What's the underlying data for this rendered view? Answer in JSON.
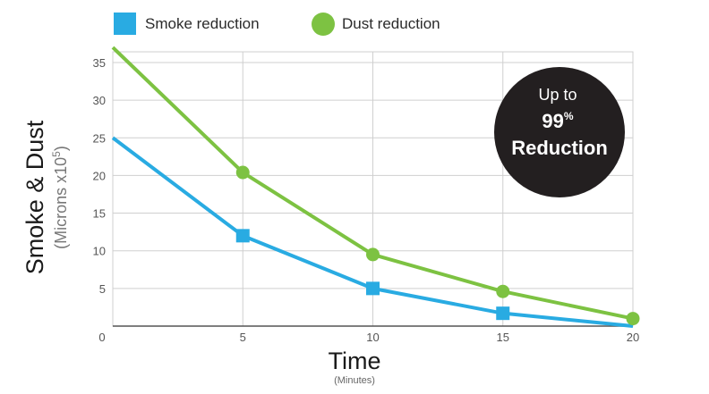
{
  "chart_data": {
    "type": "line",
    "x": [
      0,
      5,
      10,
      15,
      20
    ],
    "series": [
      {
        "name": "Smoke reduction",
        "values": [
          25,
          12,
          5,
          1.7,
          0
        ],
        "color": "#29abe2",
        "marker": "square"
      },
      {
        "name": "Dust reduction",
        "values": [
          37,
          20.4,
          9.5,
          4.6,
          1
        ],
        "color": "#7dc242",
        "marker": "circle"
      }
    ],
    "x_ticks": [
      "0",
      "5",
      "10",
      "15",
      "20"
    ],
    "y_ticks": [
      "5",
      "10",
      "15",
      "20",
      "25",
      "30",
      "35"
    ],
    "xlim": [
      0,
      20
    ],
    "ylim": [
      0,
      36
    ],
    "xlabel": "Time",
    "xlabel_sub": "(Minutes)",
    "ylabel": "Smoke & Dust",
    "ylabel_sub_prefix": "(Microns x10",
    "ylabel_sub_exp": "5",
    "ylabel_sub_suffix": ")",
    "grid": true,
    "legend_position": "top-left",
    "annotation": {
      "line1": "Up to",
      "line2": "99",
      "line2_sup": "%",
      "line3": "Reduction",
      "color": "#231f20"
    }
  }
}
